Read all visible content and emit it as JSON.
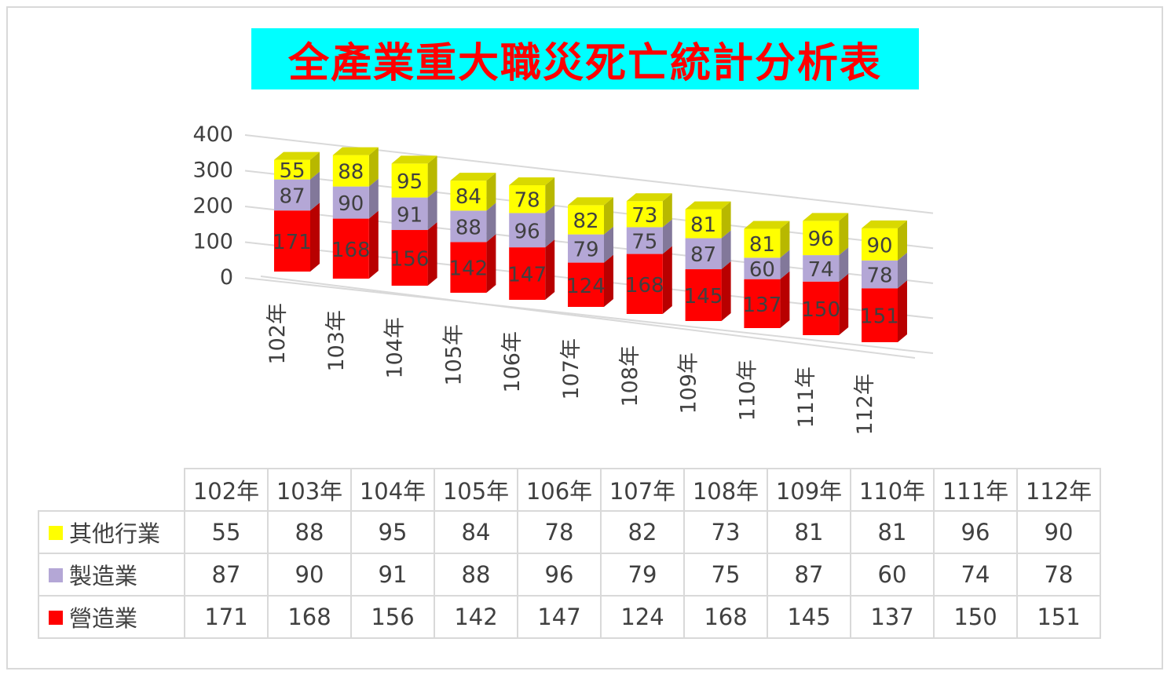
{
  "title": "全產業重大職災死亡統計分析表",
  "colors": {
    "title_bg": "#00ffff",
    "title_text": "#ff0000",
    "grid": "#d9d9d9",
    "text": "#404040"
  },
  "chart_data": {
    "type": "bar",
    "stacked": true,
    "three_d": true,
    "title": "全產業重大職災死亡統計分析表",
    "categories": [
      "102年",
      "103年",
      "104年",
      "105年",
      "106年",
      "107年",
      "108年",
      "109年",
      "110年",
      "111年",
      "112年"
    ],
    "yticks": [
      "400",
      "300",
      "200",
      "100",
      "0"
    ],
    "ylim": [
      0,
      400
    ],
    "grid": true,
    "legend": "bottom data table",
    "series": [
      {
        "name": "營造業",
        "color": "#ff0000",
        "values": [
          171,
          168,
          156,
          142,
          147,
          124,
          168,
          145,
          137,
          150,
          151
        ]
      },
      {
        "name": "製造業",
        "color": "#b4a7d6",
        "values": [
          87,
          90,
          91,
          88,
          96,
          79,
          75,
          87,
          60,
          74,
          78
        ]
      },
      {
        "name": "其他行業",
        "color": "#ffff00",
        "values": [
          55,
          88,
          95,
          84,
          78,
          82,
          73,
          81,
          81,
          96,
          90
        ]
      }
    ]
  },
  "table": {
    "rows": [
      {
        "name": "其他行業",
        "color": "#ffff00",
        "values": [
          "55",
          "88",
          "95",
          "84",
          "78",
          "82",
          "73",
          "81",
          "81",
          "96",
          "90"
        ]
      },
      {
        "name": "製造業",
        "color": "#b4a7d6",
        "values": [
          "87",
          "90",
          "91",
          "88",
          "96",
          "79",
          "75",
          "87",
          "60",
          "74",
          "78"
        ]
      },
      {
        "name": "營造業",
        "color": "#ff0000",
        "values": [
          "171",
          "168",
          "156",
          "142",
          "147",
          "124",
          "168",
          "145",
          "137",
          "150",
          "151"
        ]
      }
    ]
  }
}
